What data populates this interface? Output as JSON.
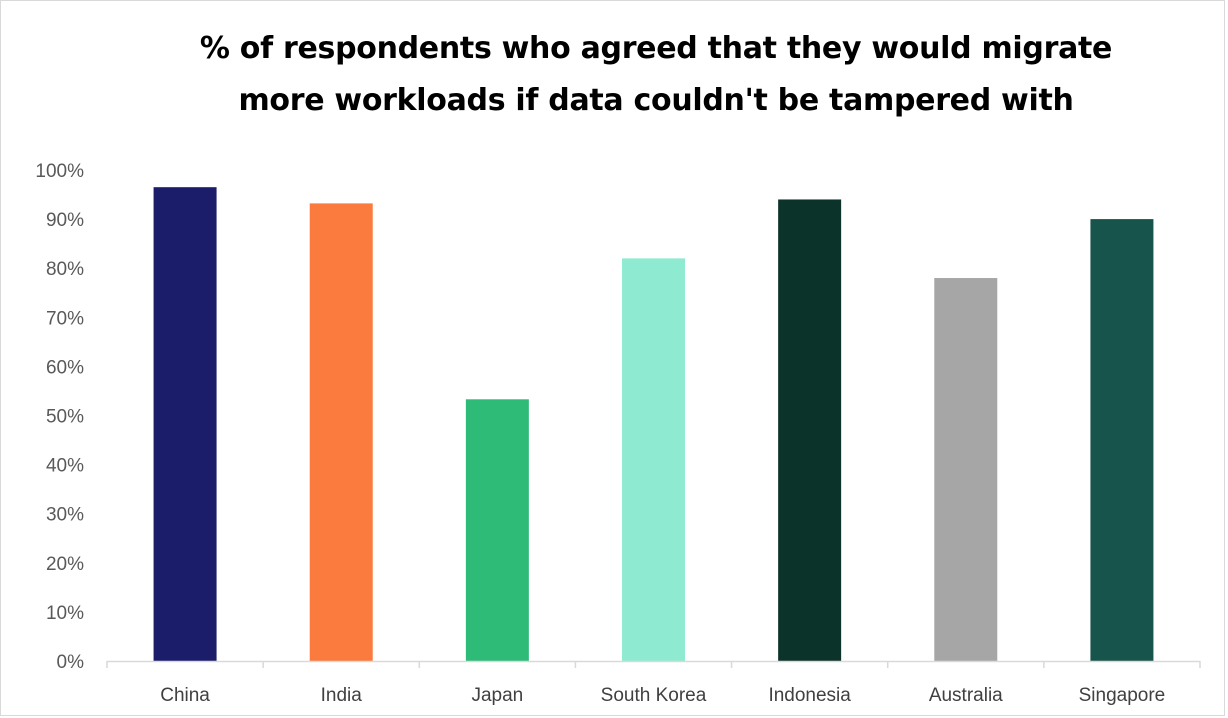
{
  "chart_data": {
    "type": "bar",
    "title_lines": [
      "% of respondents who agreed that they would migrate",
      "more workloads if data couldn't be tampered with"
    ],
    "categories": [
      "China",
      "India",
      "Japan",
      "South Korea",
      "Indonesia",
      "Australia",
      "Singapore"
    ],
    "values": [
      96.5,
      93.2,
      53.3,
      82,
      94,
      78,
      90
    ],
    "colors": [
      "#1b1d6b",
      "#fb7a3d",
      "#2ebb78",
      "#8eead0",
      "#0b3329",
      "#a6a6a6",
      "#17544b"
    ],
    "y_ticks": [
      "0%",
      "10%",
      "20%",
      "30%",
      "40%",
      "50%",
      "60%",
      "70%",
      "80%",
      "90%",
      "100%"
    ],
    "ylim": [
      0,
      100
    ],
    "grid": false,
    "legend": "none"
  }
}
